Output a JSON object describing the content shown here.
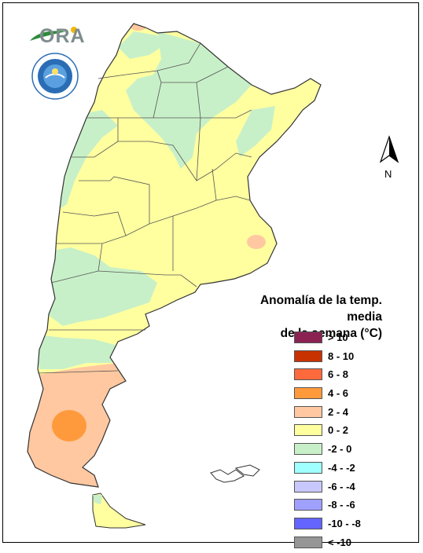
{
  "logo": {
    "text": "ORA",
    "accent": "#f2b705",
    "wing": "#2e8b3a"
  },
  "north_label": "N",
  "legend": {
    "title_line1": "Anomalía de la temp. media",
    "title_line2": "de la semana (°C)",
    "items": [
      {
        "label": "> 10",
        "color": "#8b2252"
      },
      {
        "label": "8 - 10",
        "color": "#c83200"
      },
      {
        "label": "6 - 8",
        "color": "#ff6a3c"
      },
      {
        "label": "4 - 6",
        "color": "#ff9a3c"
      },
      {
        "label": "2 - 4",
        "color": "#ffc8a0"
      },
      {
        "label": "0 - 2",
        "color": "#ffffa0"
      },
      {
        "label": "-2 - 0",
        "color": "#c8f0c8"
      },
      {
        "label": "-4 - -2",
        "color": "#a0ffff"
      },
      {
        "label": "-6 - -4",
        "color": "#c8c8ff"
      },
      {
        "label": "-8 - -6",
        "color": "#a0a0ff"
      },
      {
        "label": "-10 - -8",
        "color": "#6464ff"
      },
      {
        "label": "< -10",
        "color": "#969696"
      }
    ]
  }
}
